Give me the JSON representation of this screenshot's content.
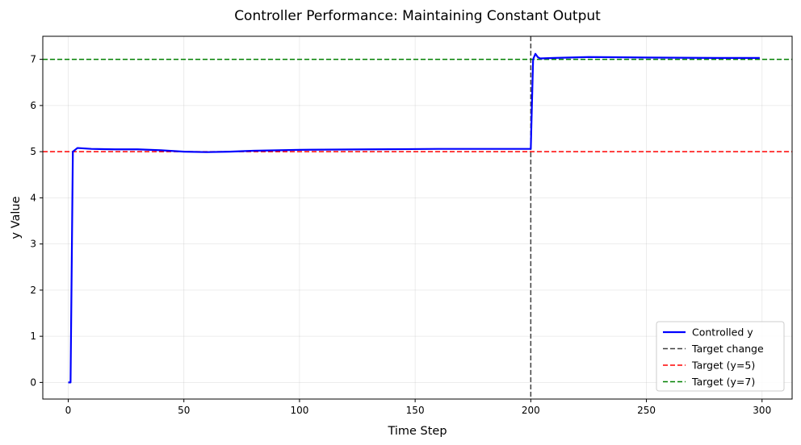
{
  "chart_data": {
    "type": "line",
    "title": "Controller Performance: Maintaining Constant Output",
    "xlabel": "Time Step",
    "ylabel": "y Value",
    "xlim": [
      -11,
      313
    ],
    "ylim": [
      -0.36,
      7.5
    ],
    "xticks": [
      0,
      50,
      100,
      150,
      200,
      250,
      300
    ],
    "yticks": [
      0,
      1,
      2,
      3,
      4,
      5,
      6,
      7
    ],
    "grid": true,
    "legend_position": "lower-right",
    "series": [
      {
        "name": "Controlled y",
        "color": "#0000ff",
        "style": "solid",
        "x": [
          0,
          1,
          2,
          4,
          10,
          20,
          30,
          40,
          50,
          60,
          70,
          80,
          100,
          130,
          160,
          199,
          200,
          201,
          202,
          203,
          204,
          210,
          225,
          250,
          280,
          299
        ],
        "y": [
          0,
          0,
          5.0,
          5.08,
          5.06,
          5.05,
          5.05,
          5.03,
          5.0,
          4.99,
          5.0,
          5.02,
          5.04,
          5.05,
          5.06,
          5.06,
          5.06,
          7.0,
          7.12,
          7.05,
          7.02,
          7.03,
          7.05,
          7.04,
          7.03,
          7.03
        ]
      },
      {
        "name": "Target change",
        "kind": "vline",
        "x": 200,
        "color": "#404040",
        "style": "dashed"
      },
      {
        "name": "Target (y=5)",
        "kind": "hline",
        "y": 5,
        "color": "#ff0000",
        "style": "dashed"
      },
      {
        "name": "Target (y=7)",
        "kind": "hline",
        "y": 7,
        "color": "#008000",
        "style": "dashed"
      }
    ]
  }
}
